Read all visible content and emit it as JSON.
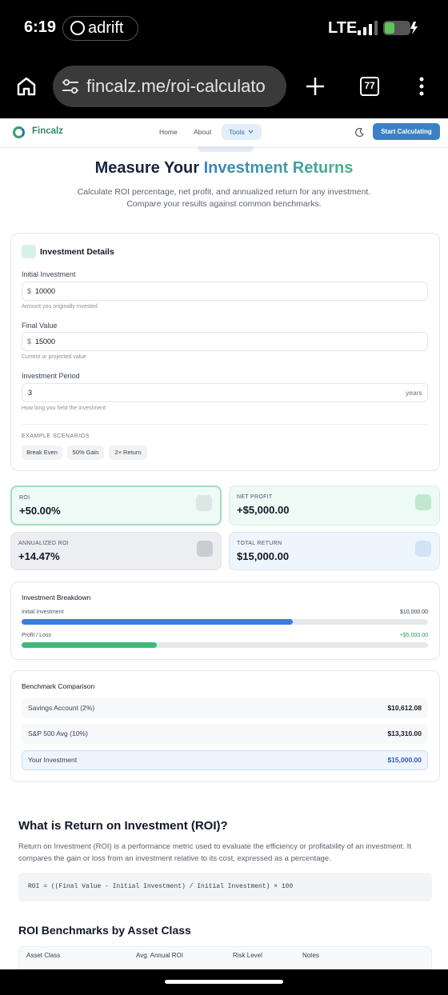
{
  "status_bar": {
    "time": "6:19",
    "app": "adrift",
    "network": "LTE"
  },
  "browser": {
    "url": "fincalz.me/roi-calculato",
    "tab_count": "77"
  },
  "nav": {
    "brand": "Fincalz",
    "links": [
      "Home",
      "About",
      "Tools"
    ],
    "cta": "Start Calculating"
  },
  "hero": {
    "title": "Measure Your",
    "title_highlight": "Investment Returns",
    "subtitle": [
      "Calculate ROI percentage, net profit, and annualized return for any investment.",
      "Compare your results against common benchmarks."
    ]
  },
  "form": {
    "title": "Investment Details",
    "fields": [
      {
        "label": "Initial Investment",
        "prefix": "$",
        "value": "10000",
        "hint": "Amount you originally invested"
      },
      {
        "label": "Final Value",
        "prefix": "$",
        "value": "15000",
        "hint": "Current or projected value"
      },
      {
        "label": "Investment Period",
        "value": "3",
        "suffix": "years",
        "hint": "How long you held the investment"
      }
    ],
    "examples_label": "EXAMPLE SCENARIOS",
    "examples": [
      "Break Even",
      "50% Gain",
      "2× Return"
    ]
  },
  "results": [
    {
      "label": "ROI",
      "value": "+50.00%"
    },
    {
      "label": "NET PROFIT",
      "value": "+$5,000.00"
    },
    {
      "label": "ANNUALIZED ROI",
      "value": "+14.47%"
    },
    {
      "label": "TOTAL RETURN",
      "value": "$15,000.00"
    }
  ],
  "breakdown": {
    "title": "Investment Breakdown",
    "rows": [
      {
        "label": "Initial Investment",
        "amount": "$10,000.00"
      },
      {
        "label": "Profit / Loss",
        "amount": "+$5,000.00"
      }
    ]
  },
  "benchmarks": {
    "title": "Benchmark Comparison",
    "rows": [
      {
        "label": "Savings Account (2%)",
        "value": "$10,612.08"
      },
      {
        "label": "S&P 500 Avg (10%)",
        "value": "$13,310.00"
      },
      {
        "label": "Your Investment",
        "value": "$15,000.00"
      }
    ]
  },
  "article": {
    "heading": "What is Return on Investment (ROI)?",
    "paragraph": [
      "Return on Investment (ROI) is a performance metric used to evaluate the efficiency or profitability of an investment. It",
      "compares the gain or loss from an investment relative to its cost, expressed as a percentage."
    ],
    "formula": "ROI = ((Final Value - Initial Investment) / Initial Investment) × 100",
    "table_heading": "ROI Benchmarks by Asset Class",
    "table_headers": [
      "Asset Class",
      "Avg. Annual ROI",
      "Risk Level",
      "Notes"
    ]
  }
}
